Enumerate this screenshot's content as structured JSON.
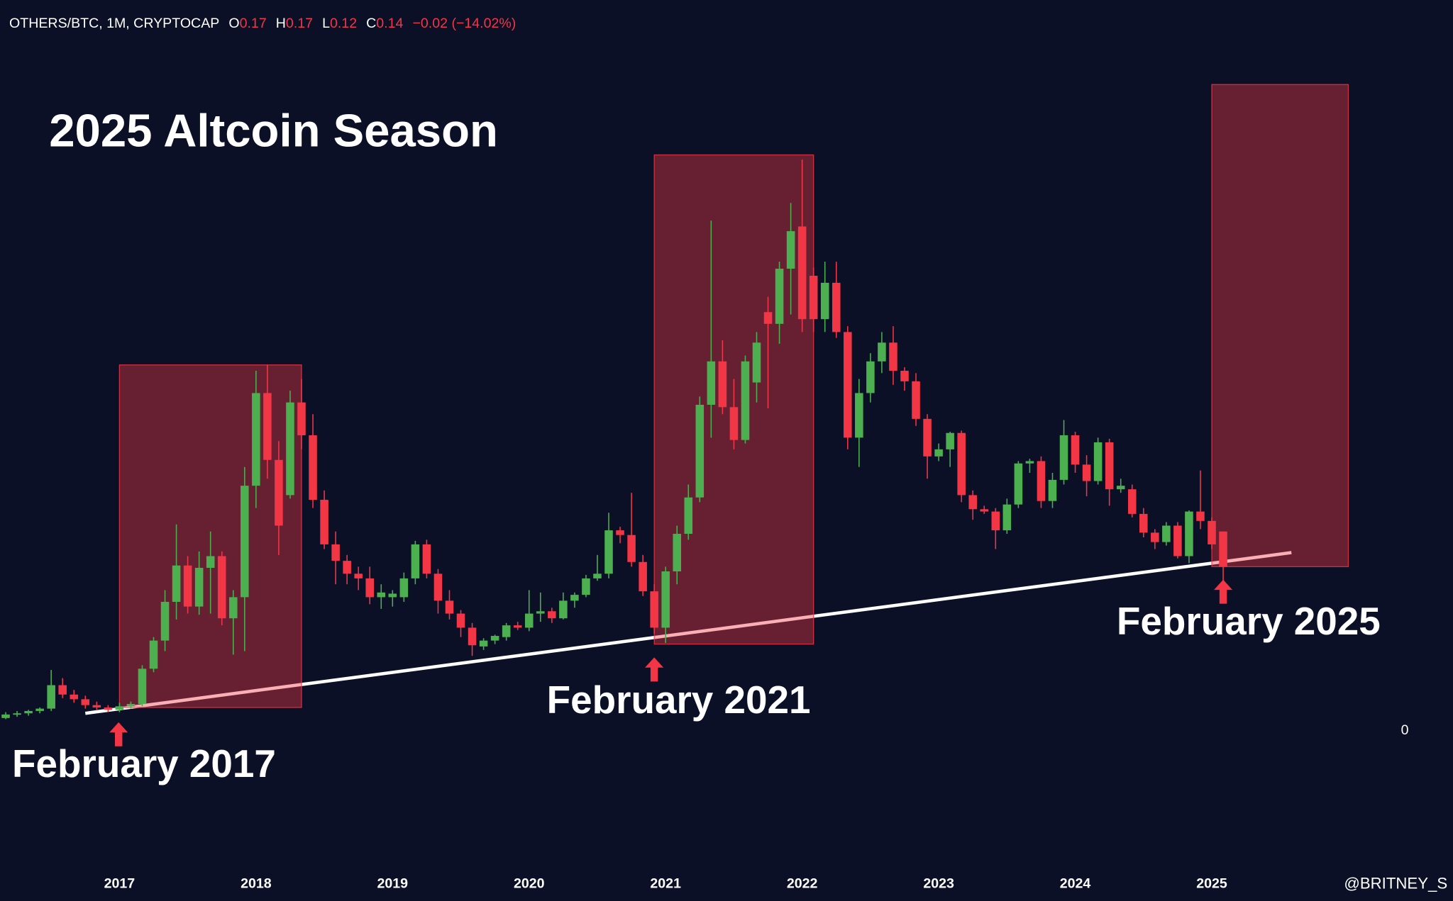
{
  "chart_data": {
    "type": "candlestick",
    "symbol": "OTHERS/BTC, 1M, CRYPTOCAP",
    "ohlc_legend": [
      {
        "label": "O",
        "value": "0.17"
      },
      {
        "label": "H",
        "value": "0.17"
      },
      {
        "label": "L",
        "value": "0.12"
      },
      {
        "label": "C",
        "value": "0.14"
      }
    ],
    "change": "−0.02 (−14.02%)",
    "title": "2025 Altcoin Season",
    "annotations": [
      "February 2017",
      "February 2021",
      "February 2025"
    ],
    "watermark": "@BRITNEY_S",
    "up_color": "#4caf50",
    "down_color": "#f23645",
    "categories": [
      null,
      null,
      null,
      null,
      null,
      null,
      null,
      null,
      null,
      null,
      "2017",
      null,
      null,
      null,
      null,
      null,
      null,
      null,
      null,
      null,
      null,
      null,
      "2018",
      null,
      null,
      null,
      null,
      null,
      null,
      null,
      null,
      null,
      null,
      null,
      "2019",
      null,
      null,
      null,
      null,
      null,
      null,
      null,
      null,
      null,
      null,
      null,
      "2020",
      null,
      null,
      null,
      null,
      null,
      null,
      null,
      null,
      null,
      null,
      null,
      "2021",
      null,
      null,
      null,
      null,
      null,
      null,
      null,
      null,
      null,
      null,
      null,
      "2022",
      null,
      null,
      null,
      null,
      null,
      null,
      null,
      null,
      null,
      null,
      null,
      "2023",
      null,
      null,
      null,
      null,
      null,
      null,
      null,
      null,
      null,
      null,
      null,
      "2024",
      null,
      null,
      null,
      null,
      null,
      null,
      null,
      null,
      null,
      null,
      null,
      "2025",
      null
    ],
    "open": [
      0.011,
      0.014,
      0.015,
      0.017,
      0.019,
      0.039,
      0.031,
      0.027,
      0.022,
      0.02,
      0.018,
      0.021,
      0.023,
      0.053,
      0.077,
      0.11,
      0.141,
      0.106,
      0.139,
      0.149,
      0.096,
      0.114,
      0.209,
      0.288,
      0.231,
      0.201,
      0.28,
      0.252,
      0.197,
      0.159,
      0.145,
      0.134,
      0.13,
      0.114,
      0.114,
      0.114,
      0.13,
      0.159,
      0.134,
      0.111,
      0.1,
      0.088,
      0.072,
      0.077,
      0.08,
      0.09,
      0.088,
      0.1,
      0.102,
      0.096,
      0.111,
      0.116,
      0.13,
      0.134,
      0.171,
      0.167,
      0.144,
      0.119,
      0.088,
      0.136,
      0.168,
      0.199,
      0.278,
      0.315,
      0.276,
      0.248,
      0.297,
      0.357,
      0.347,
      0.394,
      0.43,
      0.388,
      0.351,
      0.382,
      0.34,
      0.25,
      0.288,
      0.315,
      0.331,
      0.307,
      0.298,
      0.266,
      0.234,
      0.24,
      0.254,
      0.201,
      0.189,
      0.187,
      0.171,
      0.193,
      0.228,
      0.23,
      0.196,
      0.214,
      0.252,
      0.227,
      0.213,
      0.246,
      0.206,
      0.206,
      0.185,
      0.169,
      0.161,
      0.175,
      0.149,
      0.187,
      0.179,
      0.17
    ],
    "high": [
      0.016,
      0.017,
      0.018,
      0.02,
      0.052,
      0.045,
      0.035,
      0.03,
      0.025,
      0.022,
      0.024,
      0.025,
      0.056,
      0.08,
      0.12,
      0.176,
      0.149,
      0.153,
      0.17,
      0.153,
      0.12,
      0.225,
      0.307,
      0.312,
      0.247,
      0.29,
      0.3,
      0.27,
      0.205,
      0.17,
      0.15,
      0.14,
      0.14,
      0.125,
      0.12,
      0.135,
      0.162,
      0.163,
      0.138,
      0.12,
      0.103,
      0.092,
      0.079,
      0.082,
      0.092,
      0.093,
      0.12,
      0.118,
      0.105,
      0.118,
      0.118,
      0.133,
      0.15,
      0.186,
      0.174,
      0.203,
      0.15,
      0.125,
      0.14,
      0.175,
      0.21,
      0.285,
      0.435,
      0.333,
      0.3,
      0.32,
      0.34,
      0.37,
      0.4,
      0.45,
      0.487,
      0.395,
      0.4,
      0.4,
      0.345,
      0.3,
      0.322,
      0.34,
      0.345,
      0.31,
      0.305,
      0.27,
      0.245,
      0.255,
      0.256,
      0.205,
      0.192,
      0.19,
      0.198,
      0.23,
      0.232,
      0.234,
      0.22,
      0.265,
      0.255,
      0.235,
      0.25,
      0.249,
      0.215,
      0.21,
      0.19,
      0.172,
      0.178,
      0.178,
      0.188,
      0.222,
      0.182,
      0.17
    ],
    "low": [
      0.01,
      0.012,
      0.013,
      0.015,
      0.017,
      0.028,
      0.024,
      0.019,
      0.018,
      0.016,
      0.016,
      0.019,
      0.021,
      0.05,
      0.068,
      0.095,
      0.1,
      0.099,
      0.1,
      0.09,
      0.065,
      0.068,
      0.19,
      0.215,
      0.15,
      0.198,
      0.24,
      0.19,
      0.155,
      0.125,
      0.125,
      0.12,
      0.108,
      0.104,
      0.106,
      0.11,
      0.125,
      0.13,
      0.1,
      0.095,
      0.08,
      0.064,
      0.069,
      0.074,
      0.077,
      0.086,
      0.085,
      0.093,
      0.092,
      0.095,
      0.105,
      0.114,
      0.128,
      0.13,
      0.16,
      0.14,
      0.115,
      0.083,
      0.075,
      0.125,
      0.163,
      0.195,
      0.25,
      0.27,
      0.24,
      0.245,
      0.28,
      0.275,
      0.33,
      0.355,
      0.34,
      0.34,
      0.34,
      0.335,
      0.24,
      0.225,
      0.28,
      0.305,
      0.295,
      0.29,
      0.26,
      0.215,
      0.23,
      0.225,
      0.195,
      0.18,
      0.185,
      0.155,
      0.168,
      0.19,
      0.22,
      0.19,
      0.19,
      0.21,
      0.22,
      0.2,
      0.21,
      0.192,
      0.203,
      0.182,
      0.165,
      0.155,
      0.158,
      0.147,
      0.143,
      0.172,
      0.155,
      0.12
    ],
    "close": [
      0.014,
      0.015,
      0.017,
      0.019,
      0.039,
      0.031,
      0.027,
      0.022,
      0.02,
      0.018,
      0.021,
      0.023,
      0.053,
      0.077,
      0.11,
      0.141,
      0.106,
      0.139,
      0.149,
      0.096,
      0.114,
      0.209,
      0.288,
      0.231,
      0.175,
      0.28,
      0.252,
      0.197,
      0.159,
      0.145,
      0.134,
      0.13,
      0.114,
      0.118,
      0.117,
      0.13,
      0.159,
      0.134,
      0.111,
      0.1,
      0.088,
      0.073,
      0.077,
      0.081,
      0.09,
      0.088,
      0.1,
      0.102,
      0.096,
      0.111,
      0.116,
      0.13,
      0.134,
      0.171,
      0.167,
      0.144,
      0.119,
      0.088,
      0.136,
      0.168,
      0.199,
      0.278,
      0.315,
      0.276,
      0.248,
      0.315,
      0.331,
      0.347,
      0.394,
      0.426,
      0.351,
      0.351,
      0.382,
      0.34,
      0.25,
      0.288,
      0.315,
      0.331,
      0.307,
      0.298,
      0.266,
      0.234,
      0.24,
      0.254,
      0.201,
      0.189,
      0.187,
      0.171,
      0.193,
      0.228,
      0.23,
      0.196,
      0.214,
      0.252,
      0.227,
      0.213,
      0.246,
      0.206,
      0.209,
      0.185,
      0.169,
      0.161,
      0.175,
      0.149,
      0.187,
      0.179,
      0.159,
      0.14
    ],
    "highlights": [
      {
        "x": [
          10,
          26
        ],
        "y": [
          0.02,
          0.312
        ],
        "color": "#f23645"
      },
      {
        "x": [
          57,
          71
        ],
        "y": [
          0.074,
          0.491
        ],
        "color": "#f23645"
      },
      {
        "x": [
          106,
          118
        ],
        "y": [
          0.14,
          0.551
        ],
        "color": "#f23645"
      }
    ],
    "trendline": {
      "x": [
        7,
        113
      ],
      "y": [
        0.015,
        0.152
      ],
      "color": "#ffffff"
    },
    "xlim": [
      -0.5,
      127.2
    ],
    "ylim": [
      -0.111,
      0.623
    ],
    "yticks": [
      0
    ]
  }
}
